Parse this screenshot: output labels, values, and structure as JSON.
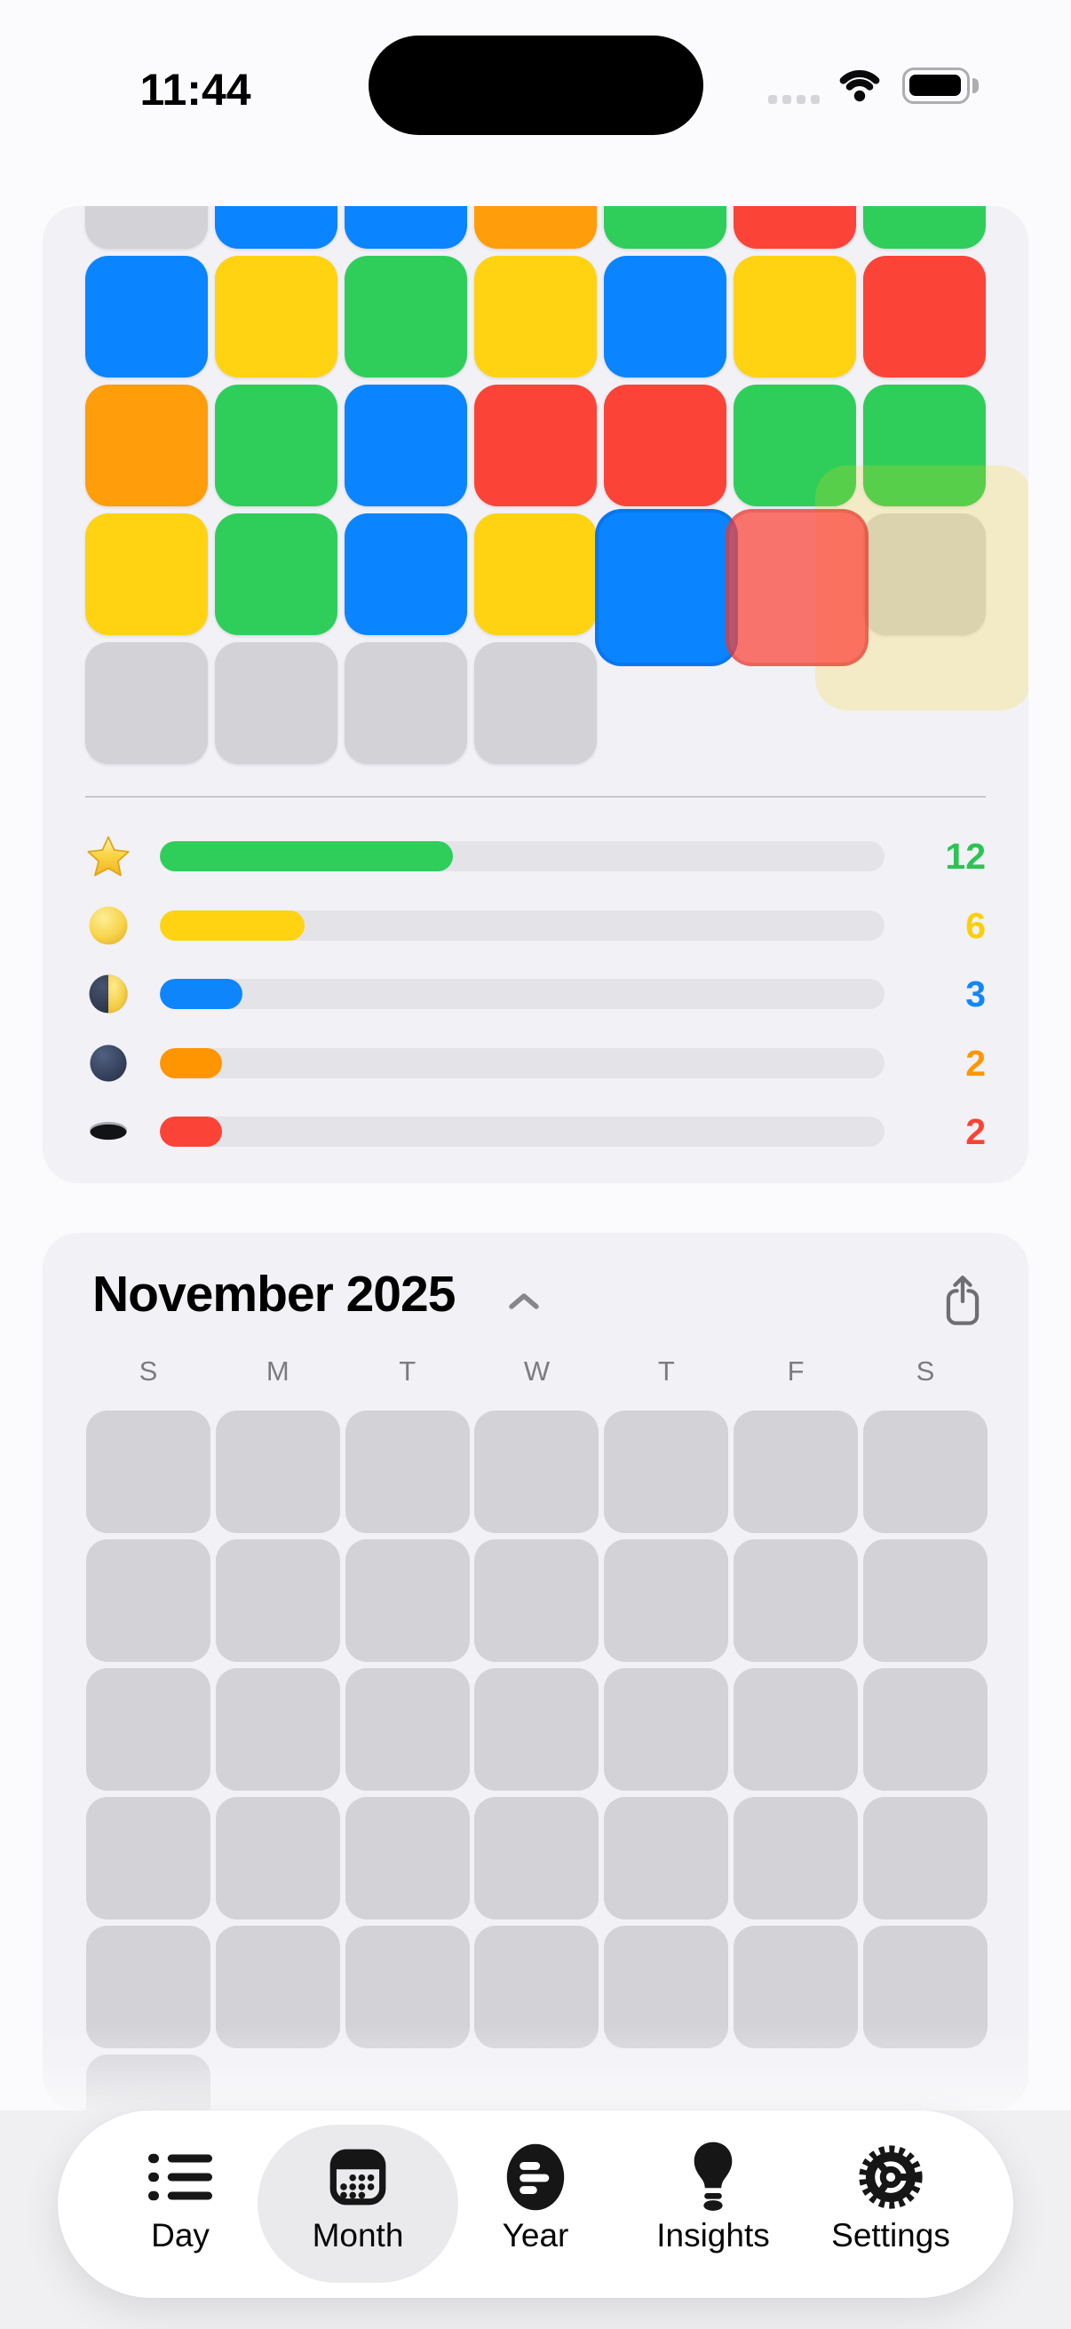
{
  "status_bar": {
    "time": "11:44",
    "battery_level": "full"
  },
  "colors": {
    "blue": "#0A84FF",
    "green": "#2FCE5B",
    "yellow": "#FFD312",
    "orange": "#FF9D0A",
    "red": "#FC4337",
    "gray_cell": "#D2D2D7",
    "card_bg": "#F1F1F6",
    "track": "#E4E4E8",
    "highlight_overlay": "rgba(255,214,10,0.20)",
    "anim_blue": "#0A84FF",
    "anim_red": "rgba(252,67,55,0.72)"
  },
  "top_card": {
    "cell_palette": {
      "blue": "#0A84FF",
      "green": "#2FCE5B",
      "yellow": "#FFD312",
      "orange": "#FF9D0A",
      "red": "#FC4337",
      "gray": "#D2D2D7"
    },
    "grid_rows": [
      [
        "gray",
        "blue",
        "blue",
        "orange",
        "green",
        "red",
        "green"
      ],
      [
        "blue",
        "yellow",
        "green",
        "yellow",
        "blue",
        "yellow",
        "red"
      ],
      [
        "orange",
        "green",
        "blue",
        "red",
        "red",
        "green",
        "green"
      ],
      [
        "yellow",
        "green",
        "blue",
        "yellow",
        "none",
        "none",
        "gray"
      ],
      [
        "gray",
        "gray",
        "gray",
        "gray",
        "none",
        "none",
        "none"
      ]
    ],
    "legend": [
      {
        "icon": "star-icon",
        "value": "12",
        "bar_pct": 40.4,
        "bar_color": "#2FCE5B",
        "value_color": "#2BC454"
      },
      {
        "icon": "full-moon-icon",
        "value": "6",
        "bar_pct": 20.0,
        "bar_color": "#FFD312",
        "value_color": "#FCCF04"
      },
      {
        "icon": "first-quarter-moon-icon",
        "value": "3",
        "bar_pct": 11.4,
        "bar_color": "#0F85FC",
        "value_color": "#1186FA"
      },
      {
        "icon": "new-moon-icon",
        "value": "2",
        "bar_pct": 8.6,
        "bar_color": "#FF9500",
        "value_color": "#FE9502"
      },
      {
        "icon": "hole-icon",
        "value": "2",
        "bar_pct": 8.6,
        "bar_color": "#FC4337",
        "value_color": "#FA4334"
      }
    ]
  },
  "month_card": {
    "title": "November 2025",
    "weekdays": [
      "S",
      "M",
      "T",
      "W",
      "T",
      "F",
      "S"
    ],
    "row_cell_counts": [
      7,
      7,
      7,
      7,
      7,
      1
    ]
  },
  "tab_bar": {
    "tabs": [
      {
        "label": "Day",
        "icon": "list-icon",
        "selected": false
      },
      {
        "label": "Month",
        "icon": "calendar-icon",
        "selected": true
      },
      {
        "label": "Year",
        "icon": "year-icon",
        "selected": false
      },
      {
        "label": "Insights",
        "icon": "lightbulb-icon",
        "selected": false
      },
      {
        "label": "Settings",
        "icon": "gear-icon",
        "selected": false
      }
    ]
  }
}
